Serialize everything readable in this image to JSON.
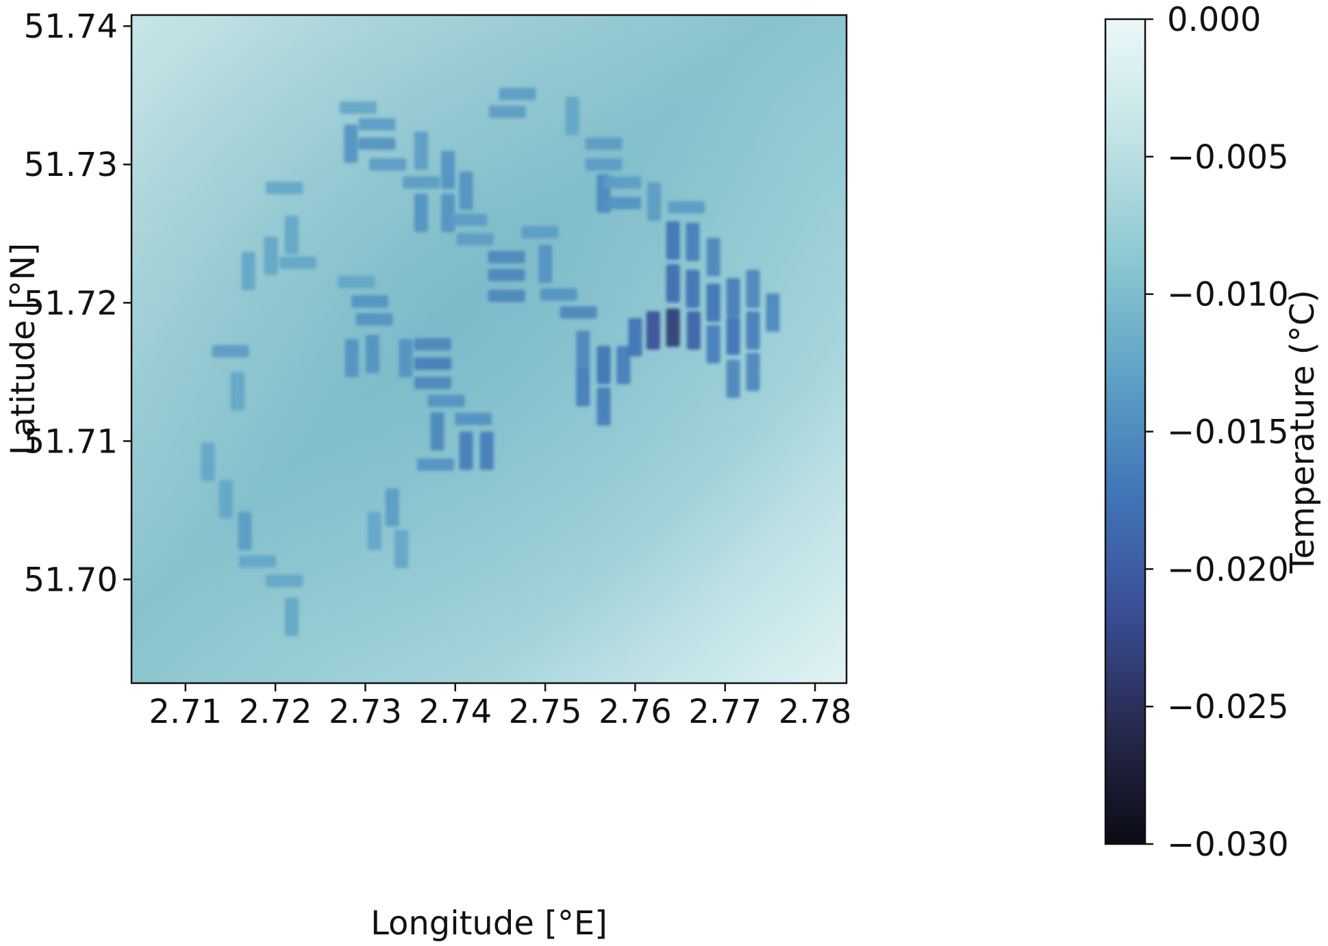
{
  "chart_data": {
    "type": "heatmap",
    "title": "",
    "xlabel": "Longitude [°E]",
    "ylabel": "Latitude [°N]",
    "colorbar_label": "Temperature (°C)",
    "xlim": [
      2.704,
      2.7835
    ],
    "ylim": [
      51.6925,
      51.7408
    ],
    "x_ticks": [
      2.71,
      2.72,
      2.73,
      2.74,
      2.75,
      2.76,
      2.77,
      2.78
    ],
    "x_tick_labels": [
      "2.71",
      "2.72",
      "2.73",
      "2.74",
      "2.75",
      "2.76",
      "2.77",
      "2.78"
    ],
    "y_ticks": [
      51.7,
      51.71,
      51.72,
      51.73,
      51.74
    ],
    "y_tick_labels": [
      "51.70",
      "51.71",
      "51.72",
      "51.73",
      "51.74"
    ],
    "colorbar_range": [
      -0.03,
      0.0
    ],
    "colorbar_ticks": [
      0.0,
      -0.005,
      -0.01,
      -0.015,
      -0.02,
      -0.025,
      -0.03
    ],
    "colorbar_tick_labels": [
      "0.000",
      "−0.005",
      "−0.010",
      "−0.015",
      "−0.020",
      "−0.025",
      "−0.030"
    ],
    "colormap": [
      "#0b0b14",
      "#272a4e",
      "#3a4f98",
      "#4176b8",
      "#5fa3c6",
      "#8fc9d2",
      "#c2e4e6",
      "#ecf8f9"
    ],
    "background_field": {
      "top_left_value": -0.0035,
      "center_value": -0.0078,
      "bottom_right_value": -0.0022
    },
    "wakes": [
      {
        "lon": 2.7292,
        "lat": 51.7341,
        "orientation": "h",
        "value": -0.0125
      },
      {
        "lon": 2.7313,
        "lat": 51.7329,
        "orientation": "h",
        "value": -0.0135
      },
      {
        "lon": 2.7313,
        "lat": 51.7315,
        "orientation": "h",
        "value": -0.0145
      },
      {
        "lon": 2.7325,
        "lat": 51.73,
        "orientation": "h",
        "value": -0.0135
      },
      {
        "lon": 2.7284,
        "lat": 51.7315,
        "orientation": "v",
        "value": -0.0145
      },
      {
        "lon": 2.7362,
        "lat": 51.731,
        "orientation": "v",
        "value": -0.0135
      },
      {
        "lon": 2.7392,
        "lat": 51.7296,
        "orientation": "v",
        "value": -0.0145
      },
      {
        "lon": 2.7412,
        "lat": 51.7281,
        "orientation": "v",
        "value": -0.0145
      },
      {
        "lon": 2.7362,
        "lat": 51.7287,
        "orientation": "h",
        "value": -0.0135
      },
      {
        "lon": 2.7362,
        "lat": 51.7265,
        "orientation": "v",
        "value": -0.0145
      },
      {
        "lon": 2.7392,
        "lat": 51.7265,
        "orientation": "v",
        "value": -0.0145
      },
      {
        "lon": 2.7415,
        "lat": 51.726,
        "orientation": "h",
        "value": -0.0135
      },
      {
        "lon": 2.7422,
        "lat": 51.7246,
        "orientation": "h",
        "value": -0.0135
      },
      {
        "lon": 2.7469,
        "lat": 51.7351,
        "orientation": "h",
        "value": -0.0135
      },
      {
        "lon": 2.7458,
        "lat": 51.7338,
        "orientation": "h",
        "value": -0.0135
      },
      {
        "lon": 2.753,
        "lat": 51.7335,
        "orientation": "v",
        "value": -0.0125
      },
      {
        "lon": 2.7565,
        "lat": 51.7315,
        "orientation": "h",
        "value": -0.0135
      },
      {
        "lon": 2.7565,
        "lat": 51.73,
        "orientation": "h",
        "value": -0.0135
      },
      {
        "lon": 2.7565,
        "lat": 51.7279,
        "orientation": "v",
        "value": -0.0155
      },
      {
        "lon": 2.7586,
        "lat": 51.7287,
        "orientation": "h",
        "value": -0.0135
      },
      {
        "lon": 2.7586,
        "lat": 51.7272,
        "orientation": "h",
        "value": -0.0145
      },
      {
        "lon": 2.7621,
        "lat": 51.7273,
        "orientation": "v",
        "value": -0.0135
      },
      {
        "lon": 2.7657,
        "lat": 51.7269,
        "orientation": "h",
        "value": -0.0135
      },
      {
        "lon": 2.7494,
        "lat": 51.7251,
        "orientation": "h",
        "value": -0.0135
      },
      {
        "lon": 2.7457,
        "lat": 51.7233,
        "orientation": "h",
        "value": -0.0155
      },
      {
        "lon": 2.7457,
        "lat": 51.722,
        "orientation": "h",
        "value": -0.0155
      },
      {
        "lon": 2.7457,
        "lat": 51.7205,
        "orientation": "h",
        "value": -0.0155
      },
      {
        "lon": 2.75,
        "lat": 51.7228,
        "orientation": "v",
        "value": -0.0145
      },
      {
        "lon": 2.7515,
        "lat": 51.7206,
        "orientation": "h",
        "value": -0.0145
      },
      {
        "lon": 2.7537,
        "lat": 51.7193,
        "orientation": "h",
        "value": -0.0155
      },
      {
        "lon": 2.7542,
        "lat": 51.7166,
        "orientation": "v",
        "value": -0.0155
      },
      {
        "lon": 2.7542,
        "lat": 51.7139,
        "orientation": "v",
        "value": -0.0165
      },
      {
        "lon": 2.7565,
        "lat": 51.7155,
        "orientation": "v",
        "value": -0.0175
      },
      {
        "lon": 2.7587,
        "lat": 51.7155,
        "orientation": "v",
        "value": -0.0165
      },
      {
        "lon": 2.7565,
        "lat": 51.7125,
        "orientation": "v",
        "value": -0.0165
      },
      {
        "lon": 2.76,
        "lat": 51.7175,
        "orientation": "v",
        "value": -0.0175
      },
      {
        "lon": 2.762,
        "lat": 51.718,
        "orientation": "v",
        "value": -0.0215
      },
      {
        "lon": 2.7642,
        "lat": 51.7182,
        "orientation": "v",
        "value": -0.0235
      },
      {
        "lon": 2.7665,
        "lat": 51.718,
        "orientation": "v",
        "value": -0.0195
      },
      {
        "lon": 2.7642,
        "lat": 51.7245,
        "orientation": "v",
        "value": -0.0175
      },
      {
        "lon": 2.7664,
        "lat": 51.7244,
        "orientation": "v",
        "value": -0.0165
      },
      {
        "lon": 2.7687,
        "lat": 51.7233,
        "orientation": "v",
        "value": -0.0155
      },
      {
        "lon": 2.7642,
        "lat": 51.7214,
        "orientation": "v",
        "value": -0.0185
      },
      {
        "lon": 2.7664,
        "lat": 51.721,
        "orientation": "v",
        "value": -0.0175
      },
      {
        "lon": 2.7687,
        "lat": 51.72,
        "orientation": "v",
        "value": -0.0175
      },
      {
        "lon": 2.7709,
        "lat": 51.7204,
        "orientation": "v",
        "value": -0.0165
      },
      {
        "lon": 2.7731,
        "lat": 51.721,
        "orientation": "v",
        "value": -0.0155
      },
      {
        "lon": 2.7753,
        "lat": 51.7193,
        "orientation": "v",
        "value": -0.0155
      },
      {
        "lon": 2.7687,
        "lat": 51.717,
        "orientation": "v",
        "value": -0.0165
      },
      {
        "lon": 2.7709,
        "lat": 51.7176,
        "orientation": "v",
        "value": -0.0175
      },
      {
        "lon": 2.7731,
        "lat": 51.718,
        "orientation": "v",
        "value": -0.0165
      },
      {
        "lon": 2.7709,
        "lat": 51.7145,
        "orientation": "v",
        "value": -0.0155
      },
      {
        "lon": 2.7731,
        "lat": 51.715,
        "orientation": "v",
        "value": -0.0155
      },
      {
        "lon": 2.721,
        "lat": 51.7283,
        "orientation": "h",
        "value": -0.0125
      },
      {
        "lon": 2.7218,
        "lat": 51.7249,
        "orientation": "v",
        "value": -0.0125
      },
      {
        "lon": 2.7195,
        "lat": 51.7234,
        "orientation": "v",
        "value": -0.0125
      },
      {
        "lon": 2.717,
        "lat": 51.7223,
        "orientation": "v",
        "value": -0.0125
      },
      {
        "lon": 2.7225,
        "lat": 51.7229,
        "orientation": "h",
        "value": -0.0125
      },
      {
        "lon": 2.729,
        "lat": 51.7215,
        "orientation": "h",
        "value": -0.0125
      },
      {
        "lon": 2.7305,
        "lat": 51.7201,
        "orientation": "h",
        "value": -0.0145
      },
      {
        "lon": 2.731,
        "lat": 51.7188,
        "orientation": "h",
        "value": -0.0145
      },
      {
        "lon": 2.7285,
        "lat": 51.716,
        "orientation": "v",
        "value": -0.0145
      },
      {
        "lon": 2.7308,
        "lat": 51.7163,
        "orientation": "v",
        "value": -0.0145
      },
      {
        "lon": 2.7345,
        "lat": 51.716,
        "orientation": "v",
        "value": -0.0145
      },
      {
        "lon": 2.7375,
        "lat": 51.717,
        "orientation": "h",
        "value": -0.0155
      },
      {
        "lon": 2.7375,
        "lat": 51.7156,
        "orientation": "h",
        "value": -0.0165
      },
      {
        "lon": 2.7375,
        "lat": 51.7142,
        "orientation": "h",
        "value": -0.0155
      },
      {
        "lon": 2.739,
        "lat": 51.7129,
        "orientation": "h",
        "value": -0.0145
      },
      {
        "lon": 2.738,
        "lat": 51.7107,
        "orientation": "v",
        "value": -0.0155
      },
      {
        "lon": 2.742,
        "lat": 51.7116,
        "orientation": "h",
        "value": -0.0145
      },
      {
        "lon": 2.7412,
        "lat": 51.7093,
        "orientation": "v",
        "value": -0.0165
      },
      {
        "lon": 2.7435,
        "lat": 51.7093,
        "orientation": "v",
        "value": -0.0165
      },
      {
        "lon": 2.7378,
        "lat": 51.7083,
        "orientation": "h",
        "value": -0.0145
      },
      {
        "lon": 2.715,
        "lat": 51.7165,
        "orientation": "h",
        "value": -0.0135
      },
      {
        "lon": 2.7158,
        "lat": 51.7136,
        "orientation": "v",
        "value": -0.0125
      },
      {
        "lon": 2.7125,
        "lat": 51.7085,
        "orientation": "v",
        "value": -0.0125
      },
      {
        "lon": 2.7145,
        "lat": 51.7058,
        "orientation": "v",
        "value": -0.0125
      },
      {
        "lon": 2.7166,
        "lat": 51.7035,
        "orientation": "v",
        "value": -0.0135
      },
      {
        "lon": 2.718,
        "lat": 51.7013,
        "orientation": "h",
        "value": -0.0125
      },
      {
        "lon": 2.721,
        "lat": 51.6999,
        "orientation": "h",
        "value": -0.0125
      },
      {
        "lon": 2.7218,
        "lat": 51.6973,
        "orientation": "v",
        "value": -0.0125
      },
      {
        "lon": 2.731,
        "lat": 51.7035,
        "orientation": "v",
        "value": -0.0125
      },
      {
        "lon": 2.733,
        "lat": 51.7052,
        "orientation": "v",
        "value": -0.0135
      },
      {
        "lon": 2.734,
        "lat": 51.7022,
        "orientation": "v",
        "value": -0.0125
      }
    ]
  }
}
